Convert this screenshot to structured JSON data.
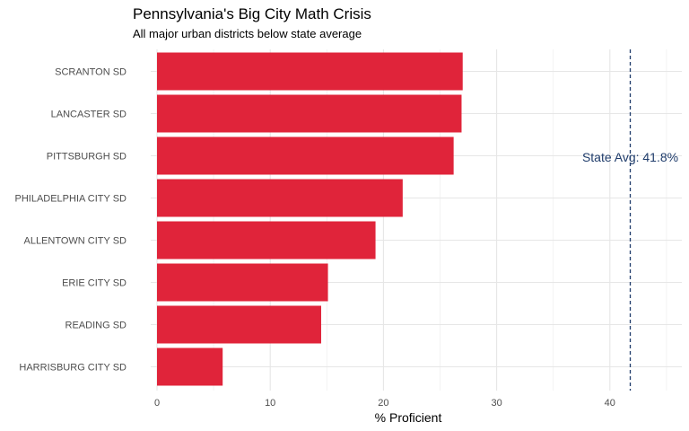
{
  "chart_data": {
    "type": "bar",
    "orientation": "horizontal",
    "title": "Pennsylvania's Big City Math Crisis",
    "subtitle": "All major urban districts below state average",
    "xlabel": "% Proficient",
    "ylabel": "",
    "categories": [
      "SCRANTON SD",
      "LANCASTER SD",
      "PITTSBURGH SD",
      "PHILADELPHIA CITY SD",
      "ALLENTOWN CITY SD",
      "ERIE CITY SD",
      "READING SD",
      "HARRISBURG CITY SD"
    ],
    "values": [
      27.0,
      26.9,
      26.2,
      21.7,
      19.3,
      15.1,
      14.5,
      5.8
    ],
    "xlim": [
      0,
      46
    ],
    "xticks": [
      0,
      10,
      20,
      30,
      40
    ],
    "grid": true,
    "bar_color": "#e0243a",
    "reference_line": {
      "value": 41.8,
      "label": "State Avg: 41.8%",
      "style": "dashed",
      "color": "#1f3c6b"
    }
  }
}
